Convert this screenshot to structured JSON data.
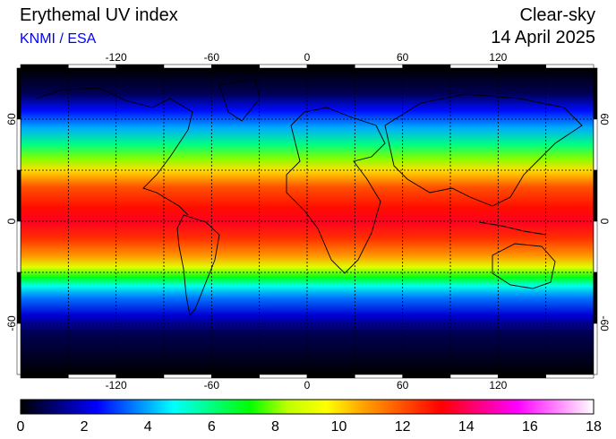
{
  "header": {
    "title": "Erythemal UV index",
    "subtitle": "KNMI / ESA",
    "sky_condition": "Clear-sky",
    "date": "14 April 2025"
  },
  "map": {
    "projection": "equirectangular",
    "lon_range": [
      -180,
      180
    ],
    "lat_range": [
      -90,
      90
    ],
    "gridlines": "dotted, every 30 degrees",
    "lon_tick_labels": [
      "-120",
      "-60",
      "0",
      "60",
      "120"
    ],
    "lat_tick_labels": [
      "60",
      "0",
      "-60"
    ],
    "lon_tick_values": [
      -120,
      -60,
      0,
      60,
      120
    ],
    "lat_tick_values": [
      60,
      0,
      -60
    ],
    "coastlines": true
  },
  "uv_profile": [
    {
      "lat": 90,
      "uv": 0
    },
    {
      "lat": 75,
      "uv": 0.8
    },
    {
      "lat": 65,
      "uv": 2.5
    },
    {
      "lat": 55,
      "uv": 4
    },
    {
      "lat": 45,
      "uv": 6
    },
    {
      "lat": 37,
      "uv": 8
    },
    {
      "lat": 30,
      "uv": 10
    },
    {
      "lat": 20,
      "uv": 12
    },
    {
      "lat": 8,
      "uv": 13
    },
    {
      "lat": 0,
      "uv": 13.5
    },
    {
      "lat": -10,
      "uv": 12.5
    },
    {
      "lat": -20,
      "uv": 11
    },
    {
      "lat": -27,
      "uv": 9
    },
    {
      "lat": -33,
      "uv": 7
    },
    {
      "lat": -38,
      "uv": 5
    },
    {
      "lat": -45,
      "uv": 3.5
    },
    {
      "lat": -55,
      "uv": 2
    },
    {
      "lat": -65,
      "uv": 0.8
    },
    {
      "lat": -90,
      "uv": 0
    }
  ],
  "colorbar": {
    "min": 0,
    "max": 18,
    "tick_labels": [
      "0",
      "2",
      "4",
      "6",
      "8",
      "10",
      "12",
      "14",
      "16",
      "18"
    ],
    "colors": [
      "#000000",
      "#000080",
      "#0000ff",
      "#0080ff",
      "#00ffff",
      "#00ff80",
      "#00ff00",
      "#c0ff00",
      "#ffff00",
      "#ffa000",
      "#ff5000",
      "#ff0000",
      "#ff0080",
      "#ff00ff",
      "#ff80ff",
      "#ffffff"
    ]
  }
}
